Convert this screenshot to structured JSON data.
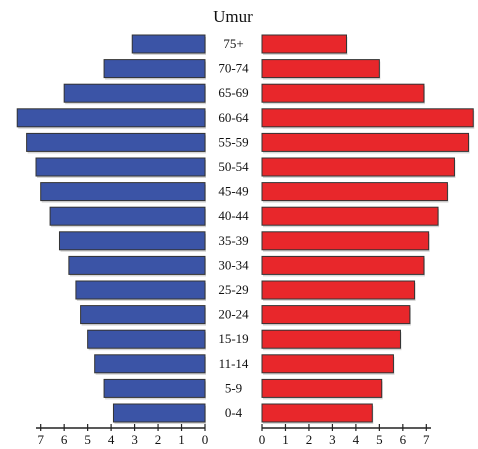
{
  "chart_data": {
    "type": "pyramid",
    "title": "Umur",
    "categories": [
      "75+",
      "70-74",
      "65-69",
      "60-64",
      "55-59",
      "50-54",
      "45-49",
      "40-44",
      "35-39",
      "30-34",
      "25-29",
      "20-24",
      "15-19",
      "11-14",
      "5-9",
      "0-4"
    ],
    "series": [
      {
        "color": "#3b54a6",
        "side": "left",
        "values": [
          3.1,
          4.3,
          6.0,
          8.0,
          7.6,
          7.2,
          7.0,
          6.6,
          6.2,
          5.8,
          5.5,
          5.3,
          5.0,
          4.7,
          4.3,
          3.9
        ]
      },
      {
        "color": "#e8272b",
        "side": "right",
        "values": [
          3.6,
          5.0,
          6.9,
          9.0,
          8.8,
          8.2,
          7.9,
          7.5,
          7.1,
          6.9,
          6.5,
          6.3,
          5.9,
          5.6,
          5.1,
          4.7
        ]
      }
    ],
    "xlim": [
      0,
      7.2
    ],
    "xticks": [
      0,
      1,
      2,
      3,
      4,
      5,
      6,
      7
    ]
  }
}
